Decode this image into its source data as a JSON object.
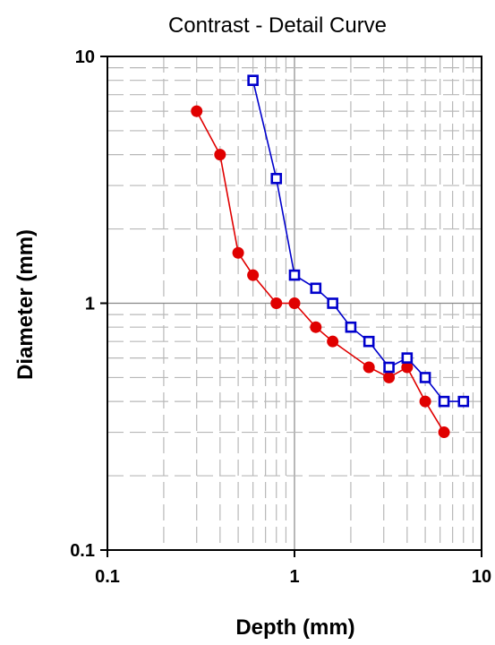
{
  "chart_data": {
    "type": "line",
    "title": "Contrast - Detail Curve",
    "xlabel": "Depth (mm)",
    "ylabel": "Diameter (mm)",
    "xscale": "log",
    "yscale": "log",
    "xlim": [
      0.1,
      10
    ],
    "ylim": [
      0.1,
      10
    ],
    "x_ticks": [
      "0.1",
      "1",
      "10"
    ],
    "y_ticks": [
      "0.1",
      "1",
      "10"
    ],
    "grid": true,
    "legend": "none",
    "series": [
      {
        "color": "#e00000",
        "marker": "circle",
        "x": [
          0.3,
          0.4,
          0.5,
          0.6,
          0.8,
          1.0,
          1.3,
          1.6,
          2.5,
          3.2,
          4.0,
          5.0,
          6.3
        ],
        "y": [
          6.0,
          4.0,
          1.6,
          1.3,
          1.0,
          1.0,
          0.8,
          0.7,
          0.55,
          0.5,
          0.55,
          0.4,
          0.3
        ]
      },
      {
        "color": "#0000cc",
        "marker": "square",
        "x": [
          0.6,
          0.8,
          1.0,
          1.3,
          1.6,
          2.0,
          2.5,
          3.2,
          4.0,
          5.0,
          6.3,
          8.0
        ],
        "y": [
          8.0,
          3.2,
          1.3,
          1.15,
          1.0,
          0.8,
          0.7,
          0.55,
          0.6,
          0.5,
          0.4,
          0.4
        ]
      }
    ]
  }
}
